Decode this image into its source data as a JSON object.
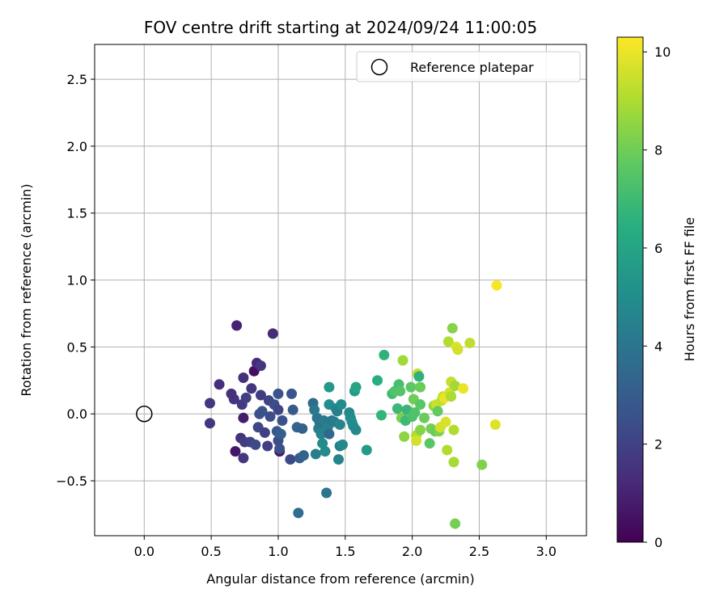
{
  "chart_data": {
    "type": "scatter",
    "title": "FOV centre drift starting at 2024/09/24 11:00:05",
    "xlabel": "Angular distance from reference (arcmin)",
    "ylabel": "Rotation from reference (arcmin)",
    "xlim": [
      -0.37,
      3.3
    ],
    "ylim": [
      -0.91,
      2.76
    ],
    "xticks": [
      0.0,
      0.5,
      1.0,
      1.5,
      2.0,
      2.5,
      3.0
    ],
    "xtick_labels": [
      "0.0",
      "0.5",
      "1.0",
      "1.5",
      "2.0",
      "2.5",
      "3.0"
    ],
    "yticks": [
      -0.5,
      0.0,
      0.5,
      1.0,
      1.5,
      2.0,
      2.5
    ],
    "ytick_labels": [
      "−0.5",
      "0.0",
      "0.5",
      "1.0",
      "1.5",
      "2.0",
      "2.5"
    ],
    "grid": true,
    "legend": {
      "placement": "top-right",
      "entries": [
        "Reference platepar"
      ]
    },
    "reference_point": {
      "x": 0.0,
      "y": 0.0,
      "label": "Reference platepar"
    },
    "colorbar": {
      "label": "Hours from first FF file",
      "colormap": "viridis",
      "range": [
        0,
        10.3
      ],
      "ticks": [
        0,
        2,
        4,
        6,
        8,
        10
      ],
      "tick_labels": [
        "0",
        "2",
        "4",
        "6",
        "8",
        "10"
      ]
    },
    "points": [
      {
        "x": 0.49,
        "y": 0.08,
        "h": 1.6
      },
      {
        "x": 0.49,
        "y": -0.07,
        "h": 1.6
      },
      {
        "x": 0.56,
        "y": 0.22,
        "h": 1.4
      },
      {
        "x": 0.65,
        "y": 0.15,
        "h": 1.4
      },
      {
        "x": 0.67,
        "y": 0.11,
        "h": 1.5
      },
      {
        "x": 0.68,
        "y": -0.28,
        "h": 0.6
      },
      {
        "x": 0.69,
        "y": 0.66,
        "h": 1.0
      },
      {
        "x": 0.72,
        "y": -0.18,
        "h": 1.5
      },
      {
        "x": 0.73,
        "y": 0.07,
        "h": 1.7
      },
      {
        "x": 0.74,
        "y": 0.27,
        "h": 1.4
      },
      {
        "x": 0.74,
        "y": -0.03,
        "h": 0.8
      },
      {
        "x": 0.74,
        "y": -0.33,
        "h": 1.6
      },
      {
        "x": 0.75,
        "y": -0.21,
        "h": 1.8
      },
      {
        "x": 0.76,
        "y": 0.12,
        "h": 1.9
      },
      {
        "x": 0.79,
        "y": -0.21,
        "h": 2.0
      },
      {
        "x": 0.8,
        "y": 0.19,
        "h": 1.6
      },
      {
        "x": 0.82,
        "y": 0.32,
        "h": 0.4
      },
      {
        "x": 0.83,
        "y": -0.23,
        "h": 2.3
      },
      {
        "x": 0.84,
        "y": 0.38,
        "h": 1.2
      },
      {
        "x": 0.85,
        "y": -0.1,
        "h": 2.2
      },
      {
        "x": 0.86,
        "y": 0.0,
        "h": 2.5
      },
      {
        "x": 0.87,
        "y": 0.36,
        "h": 1.6
      },
      {
        "x": 0.87,
        "y": 0.14,
        "h": 1.8
      },
      {
        "x": 0.88,
        "y": 0.02,
        "h": 2.6
      },
      {
        "x": 0.9,
        "y": -0.14,
        "h": 2.0
      },
      {
        "x": 0.92,
        "y": -0.24,
        "h": 1.9
      },
      {
        "x": 0.93,
        "y": 0.1,
        "h": 2.1
      },
      {
        "x": 0.94,
        "y": -0.02,
        "h": 2.4
      },
      {
        "x": 0.96,
        "y": 0.6,
        "h": 1.2
      },
      {
        "x": 0.97,
        "y": 0.07,
        "h": 2.4
      },
      {
        "x": 0.99,
        "y": -0.13,
        "h": 2.7
      },
      {
        "x": 1.0,
        "y": 0.15,
        "h": 2.6
      },
      {
        "x": 1.0,
        "y": 0.03,
        "h": 2.2
      },
      {
        "x": 1.0,
        "y": -0.2,
        "h": 2.4
      },
      {
        "x": 1.01,
        "y": -0.28,
        "h": 0.7
      },
      {
        "x": 1.01,
        "y": -0.26,
        "h": 2.5
      },
      {
        "x": 1.02,
        "y": -0.15,
        "h": 3.1
      },
      {
        "x": 1.03,
        "y": -0.05,
        "h": 2.6
      },
      {
        "x": 1.09,
        "y": -0.34,
        "h": 2.3
      },
      {
        "x": 1.1,
        "y": 0.15,
        "h": 2.7
      },
      {
        "x": 1.11,
        "y": 0.03,
        "h": 2.9
      },
      {
        "x": 1.14,
        "y": -0.1,
        "h": 3.3
      },
      {
        "x": 1.15,
        "y": -0.74,
        "h": 3.7
      },
      {
        "x": 1.16,
        "y": -0.33,
        "h": 3.0
      },
      {
        "x": 1.18,
        "y": -0.11,
        "h": 3.1
      },
      {
        "x": 1.19,
        "y": -0.31,
        "h": 3.3
      },
      {
        "x": 1.26,
        "y": 0.08,
        "h": 3.6
      },
      {
        "x": 1.27,
        "y": 0.03,
        "h": 4.1
      },
      {
        "x": 1.28,
        "y": -0.3,
        "h": 4.4
      },
      {
        "x": 1.29,
        "y": -0.03,
        "h": 4.0
      },
      {
        "x": 1.3,
        "y": -0.11,
        "h": 4.4
      },
      {
        "x": 1.31,
        "y": -0.07,
        "h": 4.0
      },
      {
        "x": 1.32,
        "y": -0.15,
        "h": 4.6
      },
      {
        "x": 1.33,
        "y": -0.22,
        "h": 4.9
      },
      {
        "x": 1.34,
        "y": -0.05,
        "h": 4.2
      },
      {
        "x": 1.35,
        "y": -0.28,
        "h": 4.9
      },
      {
        "x": 1.36,
        "y": -0.59,
        "h": 4.0
      },
      {
        "x": 1.37,
        "y": -0.1,
        "h": 4.5
      },
      {
        "x": 1.38,
        "y": 0.2,
        "h": 5.5
      },
      {
        "x": 1.38,
        "y": 0.07,
        "h": 5.0
      },
      {
        "x": 1.38,
        "y": -0.15,
        "h": 3.5
      },
      {
        "x": 1.4,
        "y": -0.05,
        "h": 4.1
      },
      {
        "x": 1.42,
        "y": -0.06,
        "h": 4.3
      },
      {
        "x": 1.43,
        "y": 0.04,
        "h": 4.7
      },
      {
        "x": 1.44,
        "y": 0.02,
        "h": 4.4
      },
      {
        "x": 1.45,
        "y": -0.34,
        "h": 4.6
      },
      {
        "x": 1.46,
        "y": -0.08,
        "h": 4.6
      },
      {
        "x": 1.46,
        "y": -0.24,
        "h": 4.3
      },
      {
        "x": 1.47,
        "y": 0.07,
        "h": 4.9
      },
      {
        "x": 1.48,
        "y": -0.23,
        "h": 4.8
      },
      {
        "x": 1.53,
        "y": 0.01,
        "h": 4.8
      },
      {
        "x": 1.54,
        "y": -0.03,
        "h": 5.0
      },
      {
        "x": 1.55,
        "y": -0.06,
        "h": 5.1
      },
      {
        "x": 1.56,
        "y": -0.09,
        "h": 5.0
      },
      {
        "x": 1.57,
        "y": 0.17,
        "h": 5.7
      },
      {
        "x": 1.58,
        "y": 0.2,
        "h": 6.0
      },
      {
        "x": 1.58,
        "y": -0.12,
        "h": 4.8
      },
      {
        "x": 1.66,
        "y": -0.27,
        "h": 5.6
      },
      {
        "x": 1.74,
        "y": 0.25,
        "h": 6.4
      },
      {
        "x": 1.77,
        "y": -0.01,
        "h": 6.7
      },
      {
        "x": 1.79,
        "y": 0.44,
        "h": 6.6
      },
      {
        "x": 1.85,
        "y": 0.15,
        "h": 7.0
      },
      {
        "x": 1.87,
        "y": 0.17,
        "h": 7.4
      },
      {
        "x": 1.89,
        "y": 0.04,
        "h": 6.9
      },
      {
        "x": 1.9,
        "y": 0.22,
        "h": 7.2
      },
      {
        "x": 1.91,
        "y": 0.17,
        "h": 7.5
      },
      {
        "x": 1.92,
        "y": -0.03,
        "h": 8.2
      },
      {
        "x": 1.93,
        "y": 0.4,
        "h": 8.8
      },
      {
        "x": 1.94,
        "y": -0.17,
        "h": 8.5
      },
      {
        "x": 1.95,
        "y": -0.05,
        "h": 7.0
      },
      {
        "x": 1.96,
        "y": 0.03,
        "h": 6.8
      },
      {
        "x": 1.99,
        "y": 0.2,
        "h": 7.7
      },
      {
        "x": 2.0,
        "y": -0.02,
        "h": 7.3
      },
      {
        "x": 2.01,
        "y": 0.11,
        "h": 8.0
      },
      {
        "x": 2.02,
        "y": 0.01,
        "h": 7.4
      },
      {
        "x": 2.03,
        "y": -0.16,
        "h": 9.1
      },
      {
        "x": 2.03,
        "y": -0.2,
        "h": 9.6
      },
      {
        "x": 2.04,
        "y": 0.3,
        "h": 9.4
      },
      {
        "x": 2.05,
        "y": 0.28,
        "h": 6.6
      },
      {
        "x": 2.06,
        "y": 0.2,
        "h": 7.9
      },
      {
        "x": 2.06,
        "y": 0.07,
        "h": 7.6
      },
      {
        "x": 2.06,
        "y": -0.12,
        "h": 8.4
      },
      {
        "x": 2.09,
        "y": -0.03,
        "h": 7.9
      },
      {
        "x": 2.13,
        "y": -0.22,
        "h": 7.6
      },
      {
        "x": 2.14,
        "y": -0.11,
        "h": 8.1
      },
      {
        "x": 2.16,
        "y": 0.06,
        "h": 8.6
      },
      {
        "x": 2.17,
        "y": -0.13,
        "h": 7.9
      },
      {
        "x": 2.18,
        "y": 0.07,
        "h": 9.5
      },
      {
        "x": 2.19,
        "y": 0.02,
        "h": 7.8
      },
      {
        "x": 2.2,
        "y": -0.13,
        "h": 8.3
      },
      {
        "x": 2.21,
        "y": -0.1,
        "h": 9.6
      },
      {
        "x": 2.22,
        "y": 0.1,
        "h": 9.3
      },
      {
        "x": 2.23,
        "y": 0.13,
        "h": 9.2
      },
      {
        "x": 2.24,
        "y": 0.12,
        "h": 10.0
      },
      {
        "x": 2.25,
        "y": -0.06,
        "h": 9.7
      },
      {
        "x": 2.26,
        "y": -0.27,
        "h": 9.1
      },
      {
        "x": 2.27,
        "y": 0.54,
        "h": 9.1
      },
      {
        "x": 2.28,
        "y": 0.16,
        "h": 9.6
      },
      {
        "x": 2.29,
        "y": 0.24,
        "h": 9.4
      },
      {
        "x": 2.29,
        "y": 0.13,
        "h": 9.0
      },
      {
        "x": 2.3,
        "y": 0.64,
        "h": 8.4
      },
      {
        "x": 2.31,
        "y": -0.36,
        "h": 8.9
      },
      {
        "x": 2.31,
        "y": -0.12,
        "h": 9.1
      },
      {
        "x": 2.32,
        "y": 0.21,
        "h": 8.8
      },
      {
        "x": 2.32,
        "y": -0.82,
        "h": 8.1
      },
      {
        "x": 2.33,
        "y": 0.5,
        "h": 9.8
      },
      {
        "x": 2.34,
        "y": 0.48,
        "h": 9.6
      },
      {
        "x": 2.38,
        "y": 0.19,
        "h": 10.0
      },
      {
        "x": 2.43,
        "y": 0.53,
        "h": 9.3
      },
      {
        "x": 2.52,
        "y": -0.38,
        "h": 8.3
      },
      {
        "x": 2.62,
        "y": -0.08,
        "h": 9.8
      },
      {
        "x": 2.63,
        "y": 0.96,
        "h": 10.2
      }
    ]
  }
}
